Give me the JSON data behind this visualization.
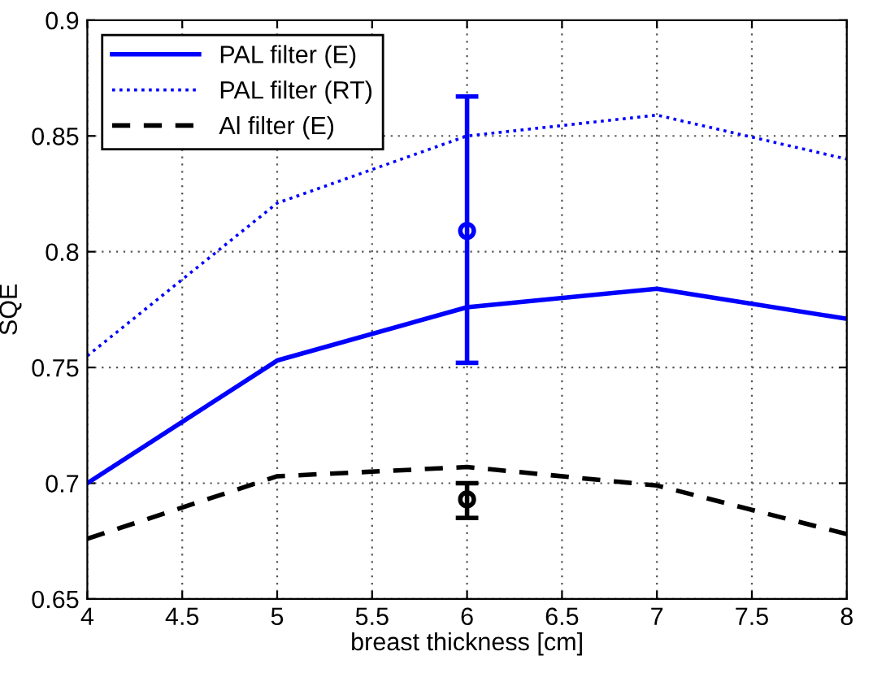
{
  "chart_data": {
    "type": "line",
    "xlabel": "breast thickness [cm]",
    "ylabel": "SQE",
    "x": [
      4,
      5,
      6,
      7,
      8
    ],
    "series": [
      {
        "name": "PAL filter (E)",
        "color": "#0000ff",
        "line_style": "solid",
        "marker": "none",
        "values": [
          0.7,
          0.753,
          0.776,
          0.784,
          0.771
        ]
      },
      {
        "name": "PAL filter (RT)",
        "color": "#0000ff",
        "line_style": "dotted",
        "marker": "none",
        "values": [
          0.755,
          0.821,
          0.85,
          0.859,
          0.84
        ]
      },
      {
        "name": "Al filter (E)",
        "color": "#000000",
        "line_style": "dashed",
        "marker": "none",
        "values": [
          0.676,
          0.703,
          0.707,
          0.699,
          0.678
        ]
      },
      {
        "type": "scatter",
        "color": "#0000ff",
        "marker": "circle",
        "x": [
          6
        ],
        "values": [
          0.809
        ],
        "errors": [
          [
            0.752,
            0.867
          ]
        ]
      },
      {
        "type": "scatter",
        "color": "#000000",
        "marker": "circle",
        "x": [
          6
        ],
        "values": [
          0.693
        ],
        "errors": [
          [
            0.685,
            0.7
          ]
        ]
      }
    ],
    "xlim": [
      4,
      8
    ],
    "xticks": [
      4,
      4.5,
      5,
      5.5,
      6,
      6.5,
      7,
      7.5,
      8
    ],
    "ylim": [
      0.65,
      0.9
    ],
    "yticks": [
      0.65,
      0.7,
      0.75,
      0.8,
      0.85,
      0.9
    ],
    "grid": true,
    "legend": "top left"
  }
}
